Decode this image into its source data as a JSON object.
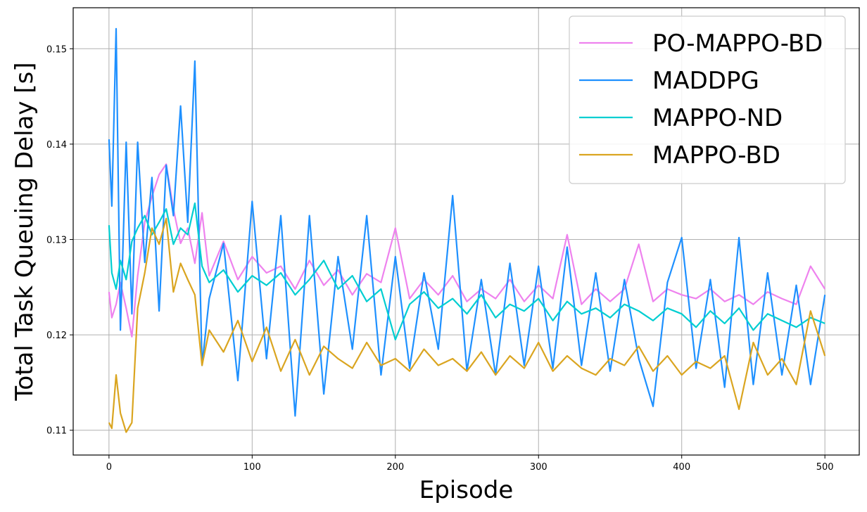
{
  "chart_data": {
    "type": "line",
    "title": "",
    "xlabel": "Episode",
    "ylabel": "Total Task Queuing Delay [s]",
    "xlim": [
      -25,
      524
    ],
    "ylim": [
      0.1074,
      0.1543
    ],
    "x_ticks": [
      0,
      100,
      200,
      300,
      400,
      500
    ],
    "x_tick_labels": [
      "0",
      "100",
      "200",
      "300",
      "400",
      "500"
    ],
    "y_ticks": [
      0.11,
      0.12,
      0.13,
      0.14,
      0.15
    ],
    "y_tick_labels": [
      "0.11",
      "0.12",
      "0.13",
      "0.14",
      "0.15"
    ],
    "grid": true,
    "legend_position": "top-right",
    "x": [
      0,
      2,
      5,
      8,
      12,
      16,
      20,
      25,
      30,
      35,
      40,
      45,
      50,
      55,
      60,
      65,
      70,
      80,
      90,
      100,
      110,
      120,
      130,
      140,
      150,
      160,
      170,
      180,
      190,
      200,
      210,
      220,
      230,
      240,
      250,
      260,
      270,
      280,
      290,
      300,
      310,
      320,
      330,
      340,
      350,
      360,
      370,
      380,
      390,
      400,
      410,
      420,
      430,
      440,
      450,
      460,
      470,
      480,
      490,
      500
    ],
    "series": [
      {
        "name": "PO-MAPPO-BD",
        "color": "#ee82ee",
        "values": [
          0.1245,
          0.1218,
          0.1232,
          0.1255,
          0.1228,
          0.1198,
          0.1262,
          0.1318,
          0.1345,
          0.1368,
          0.1379,
          0.1332,
          0.1296,
          0.1312,
          0.1275,
          0.1328,
          0.1262,
          0.1298,
          0.1258,
          0.1282,
          0.1265,
          0.1272,
          0.1248,
          0.1278,
          0.1252,
          0.1268,
          0.1242,
          0.1264,
          0.1255,
          0.1312,
          0.1238,
          0.1258,
          0.1242,
          0.1262,
          0.1235,
          0.1248,
          0.1238,
          0.1258,
          0.1235,
          0.1252,
          0.1238,
          0.1305,
          0.1232,
          0.1248,
          0.1235,
          0.1248,
          0.1295,
          0.1235,
          0.1248,
          0.1242,
          0.1238,
          0.1248,
          0.1235,
          0.1242,
          0.1232,
          0.1245,
          0.1238,
          0.1232,
          0.1272,
          0.1248
        ]
      },
      {
        "name": "MADDPG",
        "color": "#1e90ff",
        "values": [
          0.1405,
          0.1335,
          0.1521,
          0.1205,
          0.1402,
          0.1222,
          0.1402,
          0.1276,
          0.1365,
          0.1225,
          0.1378,
          0.1325,
          0.144,
          0.1318,
          0.1487,
          0.1168,
          0.1238,
          0.1296,
          0.1152,
          0.134,
          0.1175,
          0.1325,
          0.1115,
          0.1325,
          0.1138,
          0.1282,
          0.1185,
          0.1325,
          0.1158,
          0.1282,
          0.1165,
          0.1265,
          0.1185,
          0.1346,
          0.1162,
          0.1258,
          0.1158,
          0.1275,
          0.1168,
          0.1272,
          0.1165,
          0.1292,
          0.1168,
          0.1265,
          0.1162,
          0.1258,
          0.1175,
          0.1125,
          0.1255,
          0.1302,
          0.1165,
          0.1258,
          0.1145,
          0.1302,
          0.1148,
          0.1265,
          0.1158,
          0.1252,
          0.1148,
          0.1242
        ]
      },
      {
        "name": "MAPPO-ND",
        "color": "#00ced1",
        "values": [
          0.1315,
          0.1265,
          0.1248,
          0.1278,
          0.1258,
          0.1298,
          0.1312,
          0.1325,
          0.1305,
          0.1318,
          0.1332,
          0.1295,
          0.1312,
          0.1305,
          0.1338,
          0.1272,
          0.1255,
          0.1268,
          0.1245,
          0.1262,
          0.1252,
          0.1265,
          0.1242,
          0.1258,
          0.1278,
          0.1248,
          0.1262,
          0.1235,
          0.1248,
          0.1195,
          0.1232,
          0.1245,
          0.1228,
          0.1238,
          0.1222,
          0.1242,
          0.1218,
          0.1232,
          0.1225,
          0.1238,
          0.1215,
          0.1235,
          0.1222,
          0.1228,
          0.1218,
          0.1232,
          0.1225,
          0.1215,
          0.1228,
          0.1222,
          0.1208,
          0.1225,
          0.1212,
          0.1228,
          0.1205,
          0.1222,
          0.1215,
          0.1208,
          0.1218,
          0.1212
        ]
      },
      {
        "name": "MAPPO-BD",
        "color": "#daa520",
        "values": [
          0.1108,
          0.1102,
          0.1158,
          0.1118,
          0.1098,
          0.1108,
          0.1228,
          0.1265,
          0.1312,
          0.1295,
          0.1322,
          0.1245,
          0.1275,
          0.1258,
          0.1242,
          0.1168,
          0.1205,
          0.1182,
          0.1215,
          0.1172,
          0.1208,
          0.1162,
          0.1195,
          0.1158,
          0.1188,
          0.1175,
          0.1165,
          0.1192,
          0.1168,
          0.1175,
          0.1162,
          0.1185,
          0.1168,
          0.1175,
          0.1162,
          0.1182,
          0.1158,
          0.1178,
          0.1165,
          0.1192,
          0.1162,
          0.1178,
          0.1165,
          0.1158,
          0.1175,
          0.1168,
          0.1188,
          0.1162,
          0.1178,
          0.1158,
          0.1172,
          0.1165,
          0.1178,
          0.1122,
          0.1192,
          0.1158,
          0.1175,
          0.1148,
          0.1225,
          0.1178
        ]
      }
    ]
  }
}
